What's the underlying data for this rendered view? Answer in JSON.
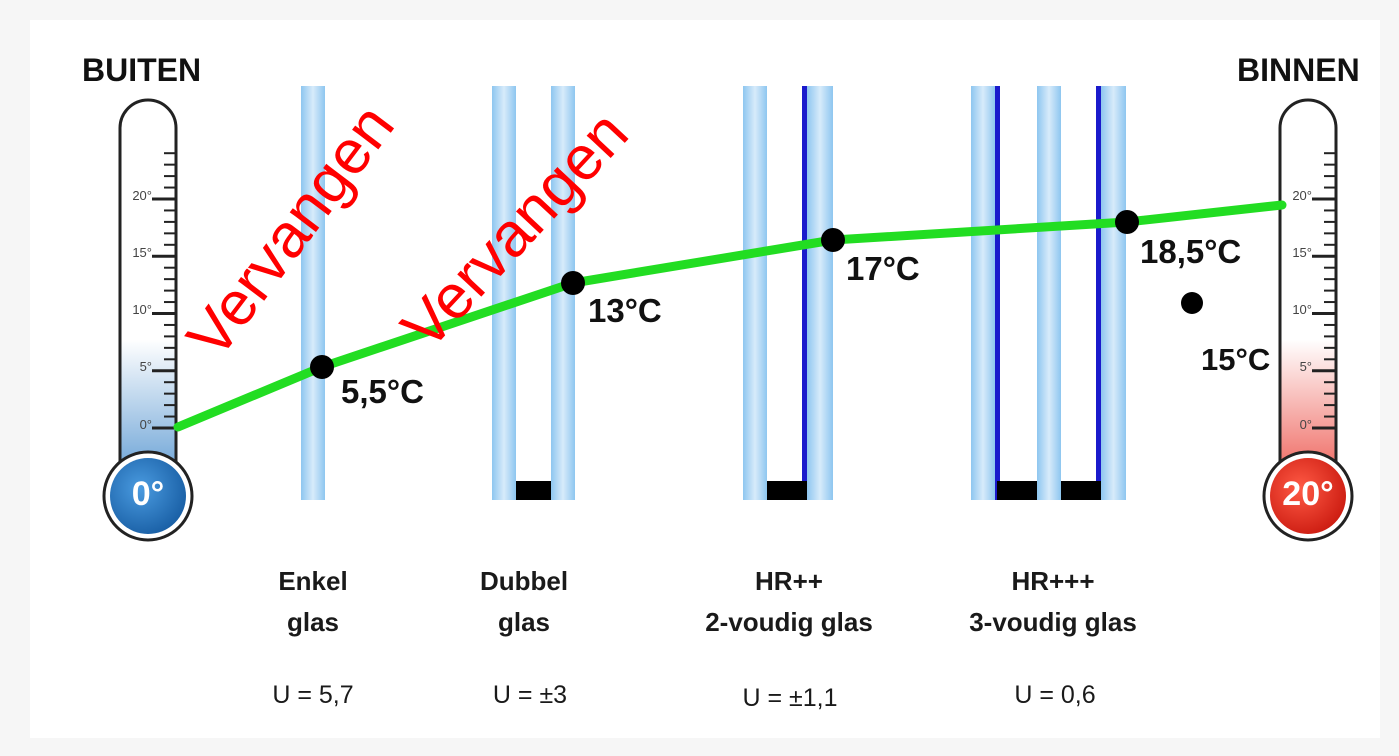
{
  "labels": {
    "outside": "BUITEN",
    "inside": "BINNEN",
    "outside_temp": "0°",
    "inside_temp": "20°"
  },
  "thermometer_ticks": [
    "0°",
    "5°",
    "10°",
    "15°",
    "20°"
  ],
  "glazing": [
    {
      "name_line1": "Enkel",
      "name_line2": "glas",
      "u_value": "U = 5,7",
      "temp_label": "5,5°C",
      "temp": 5.5
    },
    {
      "name_line1": "Dubbel",
      "name_line2": "glas",
      "u_value": "U = ±3",
      "temp_label": "13°C",
      "temp": 13
    },
    {
      "name_line1": "HR++",
      "name_line2": "2-voudig glas",
      "u_value": "U = ±1,1",
      "temp_label": "17°C",
      "temp": 17
    },
    {
      "name_line1": "HR+++",
      "name_line2": "3-voudig glas",
      "u_value": "U = 0,6",
      "temp_label": "18,5°C",
      "temp": 18.5
    }
  ],
  "extra_point": {
    "label": "15°C",
    "temp": 15
  },
  "annotations": [
    "Vervangen",
    "Vervangen"
  ],
  "colors": {
    "line": "#22dd22",
    "glass": "#a9d4f5",
    "coating": "#1a1acc",
    "spacer": "#000000",
    "cold": "#1f6fb8",
    "warm": "#e8261b",
    "annotation": "#ff0000"
  }
}
